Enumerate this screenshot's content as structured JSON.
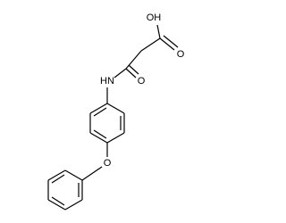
{
  "atoms": {
    "hydroxyl": "OH",
    "carboxyl_oxygen": "O",
    "amine": "HN",
    "amide_oxygen": "O",
    "ether_oxygen": "O"
  }
}
